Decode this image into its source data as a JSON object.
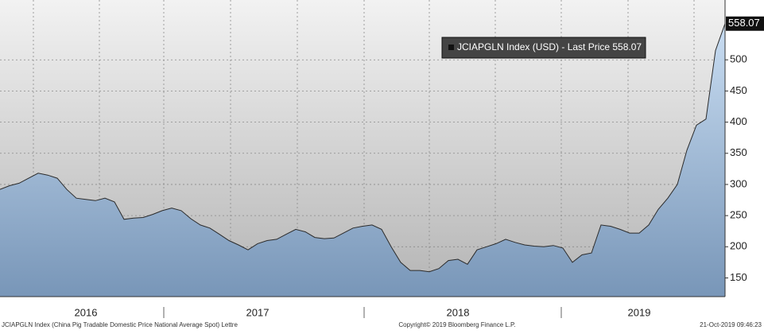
{
  "chart_data": {
    "type": "area",
    "categories": [
      null,
      null,
      null,
      null,
      null,
      null,
      null,
      null,
      null,
      "2016",
      null,
      null,
      null,
      null,
      null,
      null,
      null,
      null,
      null,
      null,
      null,
      null,
      null,
      null,
      null,
      null,
      null,
      "2017",
      null,
      null,
      null,
      null,
      null,
      null,
      null,
      null,
      null,
      null,
      null,
      null,
      null,
      null,
      null,
      null,
      null,
      null,
      null,
      null,
      "2018",
      null,
      null,
      null,
      null,
      null,
      null,
      null,
      null,
      null,
      null,
      null,
      null,
      null,
      null,
      null,
      null,
      null,
      null,
      "2019",
      null,
      null,
      null,
      null,
      null,
      null,
      null,
      null,
      null
    ],
    "series": [
      {
        "name": "JCIAPGLN Index (USD) - Last Price 558.07",
        "color": "#2b2b2b",
        "values": [
          292,
          298,
          302,
          310,
          318,
          315,
          310,
          292,
          278,
          276,
          274,
          278,
          272,
          244,
          246,
          247,
          252,
          258,
          262,
          258,
          245,
          235,
          230,
          220,
          210,
          203,
          195,
          205,
          210,
          212,
          220,
          228,
          224,
          215,
          213,
          214,
          222,
          230,
          233,
          235,
          228,
          200,
          175,
          162,
          162,
          160,
          165,
          178,
          180,
          172,
          195,
          200,
          205,
          212,
          207,
          203,
          201,
          200,
          202,
          198,
          175,
          187,
          190,
          235,
          233,
          228,
          222,
          222,
          235,
          260,
          278,
          300,
          355,
          395,
          405,
          515,
          558.07
        ]
      }
    ],
    "ylim": [
      120,
      596
    ],
    "yticks": [
      150,
      200,
      250,
      300,
      350,
      400,
      450,
      500
    ],
    "grid": true,
    "footer": {
      "left": "JCIAPGLN Index (China Pig Tradable Domestic Price National Average Spot) Lettre",
      "center": "Copyright© 2019 Bloomberg Finance L.P.",
      "right": "21-Oct-2019 09:46:23"
    }
  }
}
